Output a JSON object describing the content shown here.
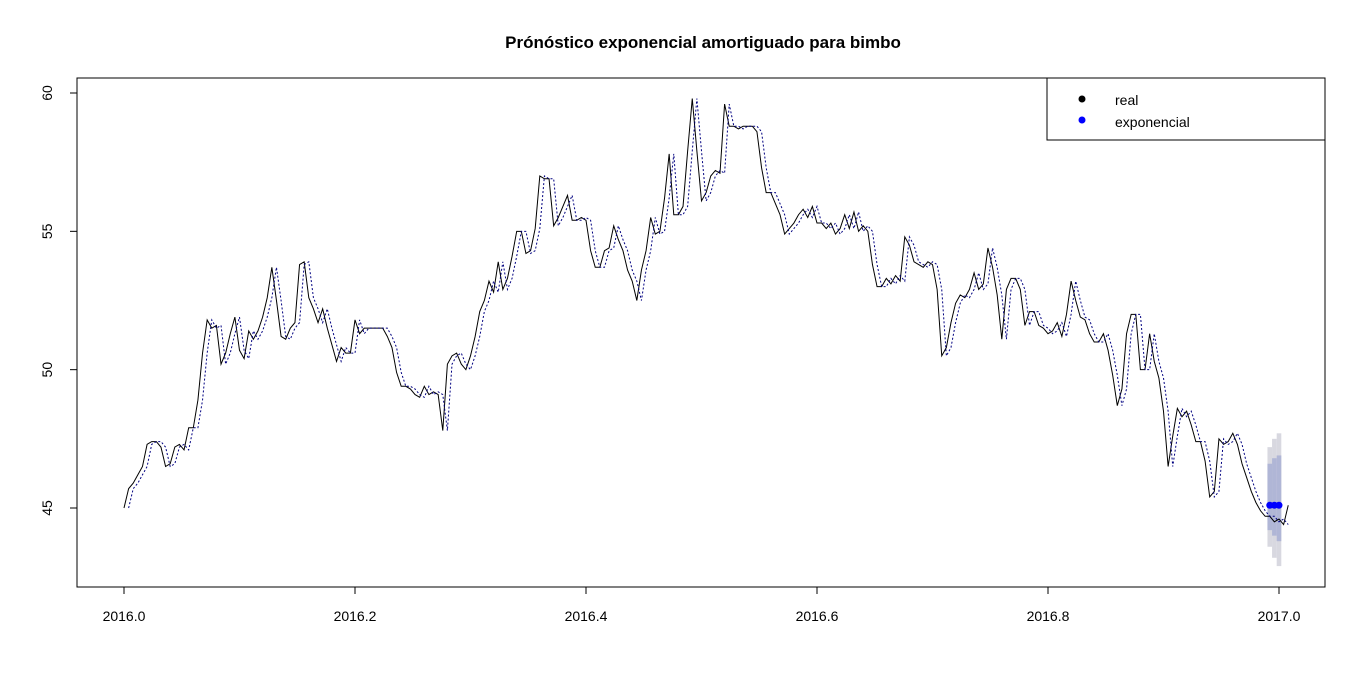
{
  "chart_data": {
    "type": "line",
    "title": "Prónóstico exponencial amortiguado para bimbo",
    "xlabel": "",
    "ylabel": "",
    "xlim": [
      2016.0,
      2017.0
    ],
    "ylim": [
      42.8,
      60.5
    ],
    "x_ticks": [
      "2016.0",
      "2016.2",
      "2016.4",
      "2016.6",
      "2016.8",
      "2017.0"
    ],
    "y_ticks": [
      "45",
      "50",
      "55",
      "60"
    ],
    "legend": {
      "position": "top-right",
      "entries": [
        {
          "label": "real",
          "color": "#000000"
        },
        {
          "label": "exponencial",
          "color": "#0000ff"
        }
      ]
    },
    "series": [
      {
        "name": "real",
        "style": "solid",
        "color": "#000000",
        "x_start": 2016.0,
        "x_step": 0.004,
        "values": [
          45.0,
          45.7,
          45.9,
          46.2,
          46.5,
          47.3,
          47.4,
          47.4,
          47.2,
          46.5,
          46.6,
          47.2,
          47.3,
          47.1,
          47.9,
          47.9,
          48.9,
          50.6,
          51.8,
          51.5,
          51.6,
          50.2,
          50.6,
          51.3,
          51.9,
          50.7,
          50.4,
          51.4,
          51.1,
          51.4,
          51.9,
          52.6,
          53.7,
          52.5,
          51.2,
          51.1,
          51.5,
          51.7,
          53.8,
          53.9,
          52.6,
          52.2,
          51.7,
          52.2,
          51.5,
          50.9,
          50.3,
          50.8,
          50.6,
          50.6,
          51.8,
          51.3,
          51.5,
          51.5,
          51.5,
          51.5,
          51.5,
          51.2,
          50.8,
          49.9,
          49.4,
          49.4,
          49.3,
          49.1,
          49.0,
          49.4,
          49.1,
          49.2,
          49.1,
          47.8,
          50.2,
          50.5,
          50.6,
          50.2,
          50.0,
          50.5,
          51.2,
          52.1,
          52.5,
          53.2,
          52.8,
          53.9,
          52.9,
          53.3,
          54.1,
          55.0,
          55.0,
          54.2,
          54.3,
          55.1,
          57.0,
          56.9,
          56.9,
          55.2,
          55.5,
          55.9,
          56.3,
          55.4,
          55.4,
          55.5,
          55.4,
          54.3,
          53.7,
          53.7,
          54.3,
          54.4,
          55.2,
          54.7,
          54.3,
          53.6,
          53.2,
          52.5,
          53.6,
          54.3,
          55.5,
          54.9,
          55.0,
          56.2,
          57.8,
          55.6,
          55.6,
          55.9,
          57.9,
          59.8,
          57.9,
          56.1,
          56.4,
          57.0,
          57.2,
          57.1,
          59.6,
          58.8,
          58.8,
          58.7,
          58.8,
          58.8,
          58.8,
          58.6,
          57.3,
          56.4,
          56.4,
          56.0,
          55.6,
          54.9,
          55.1,
          55.3,
          55.6,
          55.8,
          55.5,
          55.9,
          55.3,
          55.3,
          55.1,
          55.3,
          54.9,
          55.1,
          55.6,
          55.1,
          55.7,
          55.0,
          55.2,
          55.0,
          53.8,
          53.0,
          53.0,
          53.3,
          53.1,
          53.4,
          53.2,
          54.8,
          54.5,
          53.9,
          53.8,
          53.7,
          53.9,
          53.8,
          52.9,
          50.5,
          50.8,
          51.7,
          52.4,
          52.7,
          52.6,
          52.9,
          53.5,
          52.9,
          53.1,
          54.4,
          53.7,
          52.7,
          51.1,
          52.9,
          53.3,
          53.3,
          52.9,
          51.6,
          52.1,
          52.1,
          51.6,
          51.5,
          51.3,
          51.4,
          51.7,
          51.2,
          52.0,
          53.2,
          52.5,
          51.9,
          51.8,
          51.3,
          51.0,
          51.0,
          51.3,
          50.7,
          49.8,
          48.7,
          49.3,
          51.3,
          52.0,
          52.0,
          50.0,
          50.0,
          51.3,
          50.3,
          49.7,
          48.5,
          46.5,
          47.6,
          48.6,
          48.3,
          48.5,
          48.0,
          47.4,
          47.4,
          46.7,
          45.4,
          45.6,
          47.5,
          47.3,
          47.4,
          47.7,
          47.3,
          46.6,
          46.1,
          45.6,
          45.2,
          44.9,
          44.7,
          44.7,
          44.5,
          44.6,
          44.4,
          45.1
        ]
      },
      {
        "name": "exponencial",
        "style": "dotted",
        "color": "#000080",
        "x_start": 2016.004,
        "x_step": 0.004,
        "values": [
          45.0,
          45.7,
          45.9,
          46.2,
          46.5,
          47.3,
          47.4,
          47.4,
          47.2,
          46.5,
          46.6,
          47.2,
          47.3,
          47.1,
          47.9,
          47.9,
          48.9,
          50.6,
          51.8,
          51.5,
          51.6,
          50.2,
          50.6,
          51.3,
          51.9,
          50.7,
          50.4,
          51.4,
          51.1,
          51.4,
          51.9,
          52.6,
          53.7,
          52.5,
          51.2,
          51.1,
          51.5,
          51.7,
          53.8,
          53.9,
          52.6,
          52.2,
          51.7,
          52.2,
          51.5,
          50.9,
          50.3,
          50.8,
          50.6,
          50.6,
          51.8,
          51.3,
          51.5,
          51.5,
          51.5,
          51.5,
          51.5,
          51.2,
          50.8,
          49.9,
          49.4,
          49.4,
          49.3,
          49.1,
          49.0,
          49.4,
          49.1,
          49.2,
          49.1,
          47.8,
          50.2,
          50.5,
          50.6,
          50.2,
          50.0,
          50.5,
          51.2,
          52.1,
          52.5,
          53.2,
          52.8,
          53.9,
          52.9,
          53.3,
          54.1,
          55.0,
          55.0,
          54.2,
          54.3,
          55.1,
          57.0,
          56.9,
          56.9,
          55.2,
          55.5,
          55.9,
          56.3,
          55.4,
          55.4,
          55.5,
          55.4,
          54.3,
          53.7,
          53.7,
          54.3,
          54.4,
          55.2,
          54.7,
          54.3,
          53.6,
          53.2,
          52.5,
          53.6,
          54.3,
          55.5,
          54.9,
          55.0,
          56.2,
          57.8,
          55.6,
          55.6,
          55.9,
          57.9,
          59.8,
          57.9,
          56.1,
          56.4,
          57.0,
          57.2,
          57.1,
          59.6,
          58.8,
          58.8,
          58.7,
          58.8,
          58.8,
          58.8,
          58.6,
          57.3,
          56.4,
          56.4,
          56.0,
          55.6,
          54.9,
          55.1,
          55.3,
          55.6,
          55.8,
          55.5,
          55.9,
          55.3,
          55.3,
          55.1,
          55.3,
          54.9,
          55.1,
          55.6,
          55.1,
          55.7,
          55.0,
          55.2,
          55.0,
          53.8,
          53.0,
          53.0,
          53.3,
          53.1,
          53.4,
          53.2,
          54.8,
          54.5,
          53.9,
          53.8,
          53.7,
          53.9,
          53.8,
          52.9,
          50.5,
          50.8,
          51.7,
          52.4,
          52.7,
          52.6,
          52.9,
          53.5,
          52.9,
          53.1,
          54.4,
          53.7,
          52.7,
          51.1,
          52.9,
          53.3,
          53.3,
          52.9,
          51.6,
          52.1,
          52.1,
          51.6,
          51.5,
          51.3,
          51.4,
          51.7,
          51.2,
          52.0,
          53.2,
          52.5,
          51.9,
          51.8,
          51.3,
          51.0,
          51.0,
          51.3,
          50.7,
          49.8,
          48.7,
          49.3,
          51.3,
          52.0,
          52.0,
          50.0,
          50.0,
          51.3,
          50.3,
          49.7,
          48.5,
          46.5,
          47.6,
          48.6,
          48.3,
          48.5,
          48.0,
          47.4,
          47.4,
          46.7,
          45.4,
          45.6,
          47.5,
          47.3,
          47.4,
          47.7,
          47.3,
          46.6,
          46.1,
          45.6,
          45.2,
          44.9,
          44.7,
          44.7,
          44.5,
          44.6,
          44.4
        ]
      }
    ],
    "forecast": {
      "name": "exponencial",
      "point_color": "#0000ff",
      "x": [
        2016.992,
        2016.996,
        2017.0
      ],
      "values": [
        45.1,
        45.1,
        45.1
      ],
      "band_80": [
        [
          44.2,
          46.6
        ],
        [
          44.0,
          46.8
        ],
        [
          43.8,
          46.9
        ]
      ],
      "band_95": [
        [
          43.6,
          47.2
        ],
        [
          43.2,
          47.5
        ],
        [
          42.9,
          47.7
        ]
      ],
      "band_80_color": "#b0b6d6",
      "band_95_color": "#d8d8e0"
    }
  }
}
